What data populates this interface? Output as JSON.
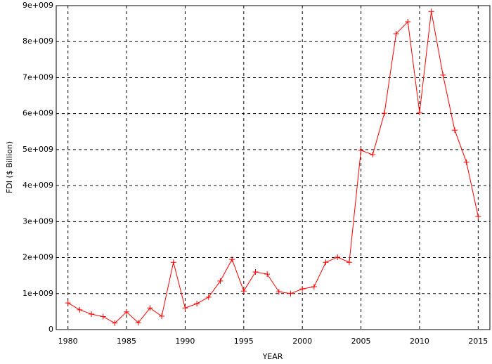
{
  "chart_data": {
    "type": "line",
    "x_label": "YEAR",
    "y_label": "FDI ($ Billion)",
    "x": [
      1980,
      1981,
      1982,
      1983,
      1984,
      1985,
      1986,
      1987,
      1988,
      1989,
      1990,
      1991,
      1992,
      1993,
      1994,
      1995,
      1996,
      1997,
      1998,
      1999,
      2000,
      2001,
      2002,
      2003,
      2004,
      2005,
      2006,
      2007,
      2008,
      2009,
      2010,
      2011,
      2012,
      2013,
      2014,
      2015
    ],
    "series": [
      {
        "name": "FDI",
        "color": "#ff0000",
        "values": [
          740000000,
          550000000,
          430000000,
          360000000,
          180000000,
          490000000,
          190000000,
          600000000,
          370000000,
          1870000000,
          600000000,
          720000000,
          900000000,
          1350000000,
          1950000000,
          1070000000,
          1600000000,
          1540000000,
          1050000000,
          1000000000,
          1130000000,
          1190000000,
          1870000000,
          2010000000,
          1870000000,
          4980000000,
          4860000000,
          6010000000,
          8220000000,
          8550000000,
          6030000000,
          8840000000,
          7070000000,
          5540000000,
          4650000000,
          3140000000
        ]
      }
    ],
    "xlim": [
      1979,
      2016
    ],
    "ylim": [
      0,
      9000000000
    ],
    "xticks": [
      1980,
      1985,
      1990,
      1995,
      2000,
      2005,
      2010,
      2015
    ],
    "yticks": [
      0,
      {
        "value": 1000000000,
        "label": "1e+009"
      },
      {
        "value": 2000000000,
        "label": "2e+009"
      },
      {
        "value": 3000000000,
        "label": "3e+009"
      },
      {
        "value": 4000000000,
        "label": "4e+009"
      },
      {
        "value": 5000000000,
        "label": "5e+009"
      },
      {
        "value": 6000000000,
        "label": "6e+009"
      },
      {
        "value": 7000000000,
        "label": "7e+009"
      },
      {
        "value": 8000000000,
        "label": "8e+009"
      },
      {
        "value": 9000000000,
        "label": "9e+009"
      }
    ],
    "grid": true
  }
}
